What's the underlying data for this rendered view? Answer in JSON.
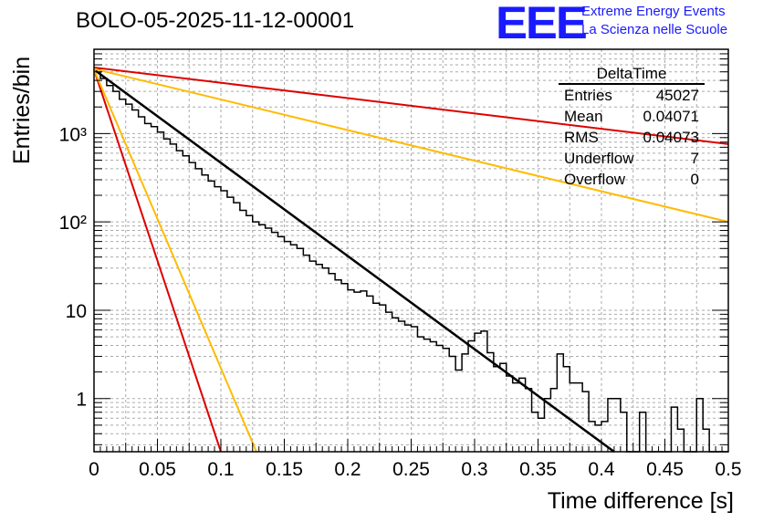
{
  "title": "BOLO-05-2025-11-12-00001",
  "logo": {
    "text": "EEE",
    "line1": "Extreme Energy Events",
    "line2": "La Scienza nelle Scuole",
    "color": "#1a1aff"
  },
  "stats_box": {
    "title": "DeltaTime",
    "rows": [
      {
        "label": "Entries",
        "value": "45027"
      },
      {
        "label": "Mean",
        "value": "0.04071"
      },
      {
        "label": "RMS",
        "value": "0.04073"
      },
      {
        "label": "Underflow",
        "value": "7"
      },
      {
        "label": "Overflow",
        "value": "0"
      }
    ]
  },
  "chart_data": {
    "type": "line",
    "title": "BOLO-05-2025-11-12-00001",
    "xlabel": "Time difference [s]",
    "ylabel": "Entries/bin",
    "xlim": [
      0,
      0.5
    ],
    "ylim": [
      0.25,
      9000
    ],
    "yscale": "log",
    "grid": true,
    "x_ticks": [
      "0",
      "0.05",
      "0.1",
      "0.15",
      "0.2",
      "0.25",
      "0.3",
      "0.35",
      "0.4",
      "0.45",
      "0.5"
    ],
    "x_tick_values": [
      0,
      0.05,
      0.1,
      0.15,
      0.2,
      0.25,
      0.3,
      0.35,
      0.4,
      0.45,
      0.5
    ],
    "y_ticks": [
      "1",
      "10",
      "10²",
      "10³"
    ],
    "y_tick_values": [
      1,
      10,
      100,
      1000
    ],
    "histogram": {
      "name": "DeltaTime",
      "color": "#000000",
      "bin_width": 0.005,
      "counts": [
        5400,
        4200,
        3500,
        3000,
        2450,
        2150,
        1850,
        1550,
        1300,
        1200,
        1040,
        870,
        760,
        640,
        560,
        470,
        400,
        340,
        290,
        250,
        225,
        190,
        165,
        135,
        118,
        100,
        93,
        85,
        76,
        68,
        60,
        55,
        50,
        42,
        36,
        33,
        30,
        26,
        22,
        20,
        17,
        16,
        16.5,
        14.5,
        12,
        11.5,
        9.5,
        8.2,
        7.5,
        6.8,
        6.5,
        5.0,
        4.7,
        4.4,
        4.0,
        3.7,
        3.0,
        2.1,
        3.2,
        4.5,
        5.5,
        5.8,
        3.3,
        2.3,
        2.5,
        1.8,
        1.5,
        1.7,
        1.3,
        0.7,
        0.6,
        1.0,
        1.3,
        3.2,
        2.3,
        1.5,
        1.5,
        1.2,
        0.55,
        0.5,
        0.55,
        1.0,
        1.0,
        0.7,
        0.1,
        0.1,
        0.7,
        0.1,
        0.1,
        0.1,
        0.1,
        0.8,
        0.45,
        0.1,
        0.1,
        1.0,
        0.45,
        0.1,
        0.1,
        0.1
      ]
    },
    "fits": [
      {
        "name": "fit",
        "color": "#000000",
        "y0": 5300,
        "y_end": 0.25,
        "x_end": 0.41,
        "width": 2.5
      },
      {
        "name": "component-red-steep",
        "color": "#dd0000",
        "y0": 5300,
        "y_end": 0.25,
        "x_end": 0.1,
        "width": 2
      },
      {
        "name": "component-orange-steep",
        "color": "#ffbb00",
        "y0": 5300,
        "y_end": 0.25,
        "x_end": 0.128,
        "width": 2
      },
      {
        "name": "component-red-slow",
        "color": "#dd0000",
        "y0": 5600,
        "y_end": 760,
        "x_end": 0.5,
        "width": 2
      },
      {
        "name": "component-orange-slow",
        "color": "#ffbb00",
        "y0": 5400,
        "y_end": 100,
        "x_end": 0.5,
        "width": 2
      }
    ]
  }
}
